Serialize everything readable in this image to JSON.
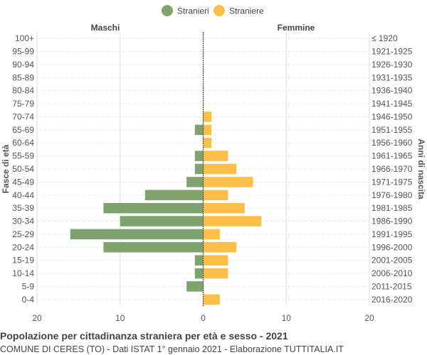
{
  "chart_data": {
    "type": "bar",
    "orientation": "horizontal-pyramid",
    "title": "Popolazione per cittadinanza straniera per età e sesso - 2021",
    "subtitle": "COMUNE DI CERES (TO) - Dati ISTAT 1° gennaio 2021 - Elaborazione TUTTITALIA.IT",
    "ylabel_left": "Fasce di età",
    "ylabel_right": "Anni di nascita",
    "left_side_label": "Maschi",
    "right_side_label": "Femmine",
    "categories": [
      "100+",
      "95-99",
      "90-94",
      "85-89",
      "80-84",
      "75-79",
      "70-74",
      "65-69",
      "60-64",
      "55-59",
      "50-54",
      "45-49",
      "40-44",
      "35-39",
      "30-34",
      "25-29",
      "20-24",
      "15-19",
      "10-14",
      "5-9",
      "0-4"
    ],
    "birth_years": [
      "≤ 1920",
      "1921-1925",
      "1926-1930",
      "1931-1935",
      "1936-1940",
      "1941-1945",
      "1946-1950",
      "1951-1955",
      "1956-1960",
      "1961-1965",
      "1966-1970",
      "1971-1975",
      "1976-1980",
      "1981-1985",
      "1986-1990",
      "1991-1995",
      "1996-2000",
      "2001-2005",
      "2006-2010",
      "2011-2015",
      "2016-2020"
    ],
    "series": [
      {
        "name": "Stranieri",
        "side": "left",
        "color": "#7fa36f",
        "values": [
          0,
          0,
          0,
          0,
          0,
          0,
          0,
          1,
          0,
          1,
          1,
          2,
          7,
          12,
          10,
          16,
          12,
          1,
          1,
          2,
          0
        ]
      },
      {
        "name": "Straniere",
        "side": "right",
        "color": "#fdbf47",
        "values": [
          0,
          0,
          0,
          0,
          0,
          0,
          1,
          1,
          1,
          3,
          4,
          6,
          3,
          5,
          7,
          2,
          4,
          3,
          3,
          0,
          2
        ]
      }
    ],
    "x_ticks": [
      "20",
      "10",
      "0",
      "10",
      "20"
    ],
    "xlim": [
      -20,
      20
    ],
    "grid": true,
    "legend_position": "top-center"
  }
}
